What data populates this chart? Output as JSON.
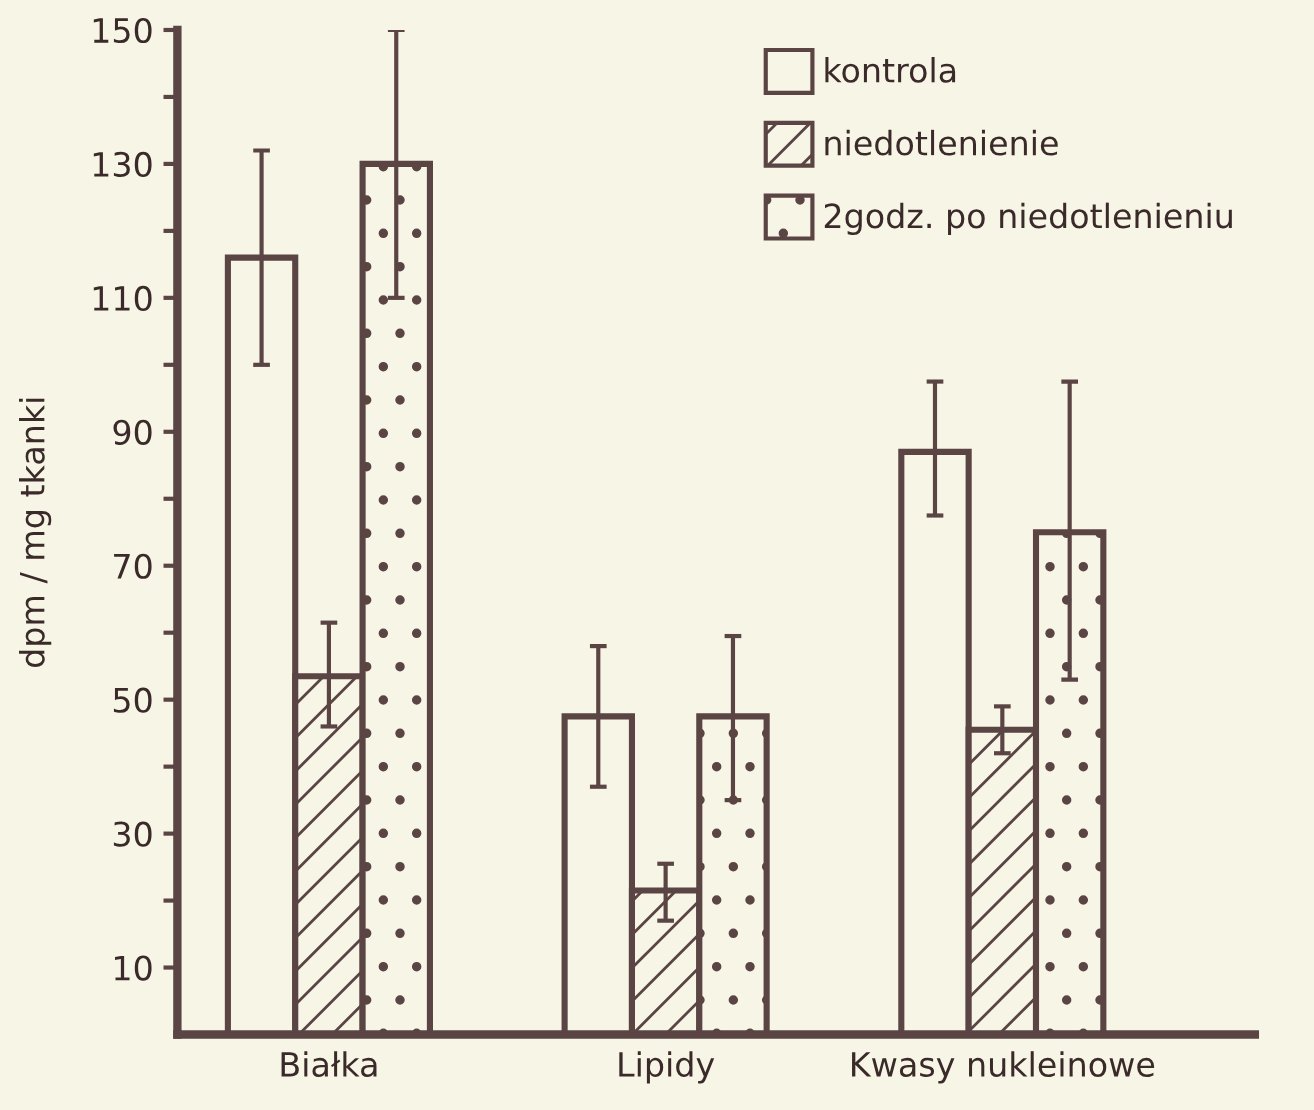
{
  "chart_data": {
    "type": "bar",
    "ylabel": "dpm / mg tkanki",
    "categories": [
      "Białka",
      "Lipidy",
      "Kwasy nukleinowe"
    ],
    "series": [
      {
        "name": "kontrola",
        "color": "#5a4444",
        "values": [
          116,
          47.5,
          87
        ],
        "errors": [
          [
            100,
            132
          ],
          [
            37,
            58
          ],
          [
            77.5,
            97.5
          ]
        ]
      },
      {
        "name": "niedotlenienie",
        "color": "#5a4444",
        "values": [
          53.5,
          21.5,
          45.5
        ],
        "errors": [
          [
            46,
            61.5
          ],
          [
            17,
            25.5
          ],
          [
            42,
            49
          ]
        ]
      },
      {
        "name": "2godz. po niedotlenieniu",
        "color": "#5a4444",
        "values": [
          130,
          47.5,
          75
        ],
        "errors": [
          [
            110,
            150
          ],
          [
            35,
            59.5
          ],
          [
            53,
            97.5
          ]
        ]
      }
    ],
    "ylim": [
      0,
      150
    ],
    "yticks": [
      {
        "value": 10,
        "label": "10"
      },
      {
        "value": 20,
        "label": null
      },
      {
        "value": 30,
        "label": "30"
      },
      {
        "value": 40,
        "label": null
      },
      {
        "value": 50,
        "label": "50"
      },
      {
        "value": 60,
        "label": null
      },
      {
        "value": 70,
        "label": "70"
      },
      {
        "value": 80,
        "label": null
      },
      {
        "value": 90,
        "label": "90"
      },
      {
        "value": 100,
        "label": null
      },
      {
        "value": 110,
        "label": "110"
      },
      {
        "value": 120,
        "label": null
      },
      {
        "value": 130,
        "label": "130"
      },
      {
        "value": 140,
        "label": null
      },
      {
        "value": 150,
        "label": "150"
      }
    ],
    "grid": false,
    "legend": "top right"
  }
}
